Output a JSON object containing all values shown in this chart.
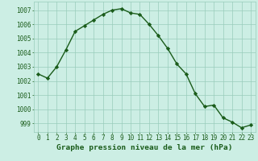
{
  "x": [
    0,
    1,
    2,
    3,
    4,
    5,
    6,
    7,
    8,
    9,
    10,
    11,
    12,
    13,
    14,
    15,
    16,
    17,
    18,
    19,
    20,
    21,
    22,
    23
  ],
  "y": [
    1002.5,
    1002.2,
    1003.0,
    1004.2,
    1005.5,
    1005.9,
    1006.3,
    1006.7,
    1007.0,
    1007.1,
    1006.8,
    1006.7,
    1006.0,
    1005.2,
    1004.3,
    1003.2,
    1002.5,
    1001.1,
    1000.2,
    1000.3,
    999.4,
    999.1,
    998.7,
    998.9
  ],
  "line_color": "#1a5c1a",
  "marker": "D",
  "markersize": 2.2,
  "linewidth": 1.0,
  "bg_color": "#cceee4",
  "grid_color": "#99ccbb",
  "xlabel": "Graphe pression niveau de la mer (hPa)",
  "xlabel_color": "#1a5c1a",
  "ylabel_ticks": [
    999,
    1000,
    1001,
    1002,
    1003,
    1004,
    1005,
    1006,
    1007
  ],
  "ylim": [
    998.4,
    1007.6
  ],
  "xlim": [
    -0.5,
    23.5
  ],
  "tick_color": "#1a5c1a",
  "tick_fontsize": 5.5,
  "xlabel_fontsize": 6.8
}
